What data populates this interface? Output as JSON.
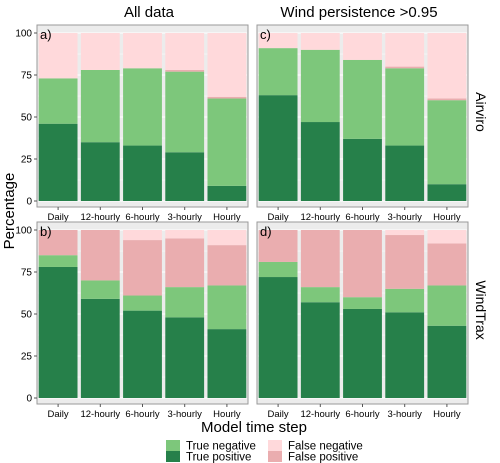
{
  "chart_data": {
    "type": "bar",
    "stacked": true,
    "column_titles": [
      "All data",
      "Wind persistence >0.95"
    ],
    "row_labels": [
      "Airviro",
      "WindTrax"
    ],
    "xlabel": "Model time step",
    "ylabel": "Percentage",
    "categories": [
      "Daily",
      "12-hourly",
      "6-hourly",
      "3-hourly",
      "Hourly"
    ],
    "yticks": [
      "0",
      "25",
      "50",
      "75",
      "100"
    ],
    "ylim": [
      0,
      100
    ],
    "legend": {
      "placement": "bottom-center",
      "items": [
        {
          "label": "True negative",
          "color": "#7dc77b"
        },
        {
          "label": "False negative",
          "color": "#ffd9db"
        },
        {
          "label": "True positive",
          "color": "#26804a"
        },
        {
          "label": "False positive",
          "color": "#eaadaf"
        }
      ]
    },
    "panels": [
      {
        "id": "a)",
        "column": "All data",
        "row": "Airviro",
        "series": [
          {
            "name": "True positive",
            "values": [
              46,
              35,
              33,
              29,
              9
            ]
          },
          {
            "name": "True negative",
            "values": [
              27,
              43,
              46,
              48,
              52
            ]
          },
          {
            "name": "False positive",
            "values": [
              0,
              0,
              0,
              1,
              1
            ]
          },
          {
            "name": "False negative",
            "values": [
              27,
              22,
              21,
              22,
              38
            ]
          }
        ]
      },
      {
        "id": "c)",
        "column": "Wind persistence >0.95",
        "row": "Airviro",
        "series": [
          {
            "name": "True positive",
            "values": [
              63,
              47,
              37,
              33,
              10
            ]
          },
          {
            "name": "True negative",
            "values": [
              28,
              43,
              47,
              46,
              50
            ]
          },
          {
            "name": "False positive",
            "values": [
              0,
              0,
              0,
              1,
              1
            ]
          },
          {
            "name": "False negative",
            "values": [
              9,
              10,
              16,
              20,
              39
            ]
          }
        ]
      },
      {
        "id": "b)",
        "column": "All data",
        "row": "WindTrax",
        "series": [
          {
            "name": "True positive",
            "values": [
              78,
              59,
              52,
              48,
              41
            ]
          },
          {
            "name": "True negative",
            "values": [
              7,
              11,
              9,
              18,
              26
            ]
          },
          {
            "name": "False positive",
            "values": [
              15,
              30,
              33,
              29,
              24
            ]
          },
          {
            "name": "False negative",
            "values": [
              0,
              0,
              6,
              5,
              9
            ]
          }
        ]
      },
      {
        "id": "d)",
        "column": "Wind persistence >0.95",
        "row": "WindTrax",
        "series": [
          {
            "name": "True positive",
            "values": [
              72,
              57,
              53,
              51,
              43
            ]
          },
          {
            "name": "True negative",
            "values": [
              9,
              9,
              7,
              14,
              24
            ]
          },
          {
            "name": "False positive",
            "values": [
              19,
              34,
              40,
              32,
              25
            ]
          },
          {
            "name": "False negative",
            "values": [
              0,
              0,
              0,
              3,
              8
            ]
          }
        ]
      }
    ],
    "colors": {
      "True positive": "#26804a",
      "True negative": "#7dc77b",
      "False positive": "#eaadaf",
      "False negative": "#ffd9db",
      "panel_background": "#ececec",
      "grid": "#ffffff",
      "panel_border": "#9a9a9a"
    },
    "grid": true
  }
}
